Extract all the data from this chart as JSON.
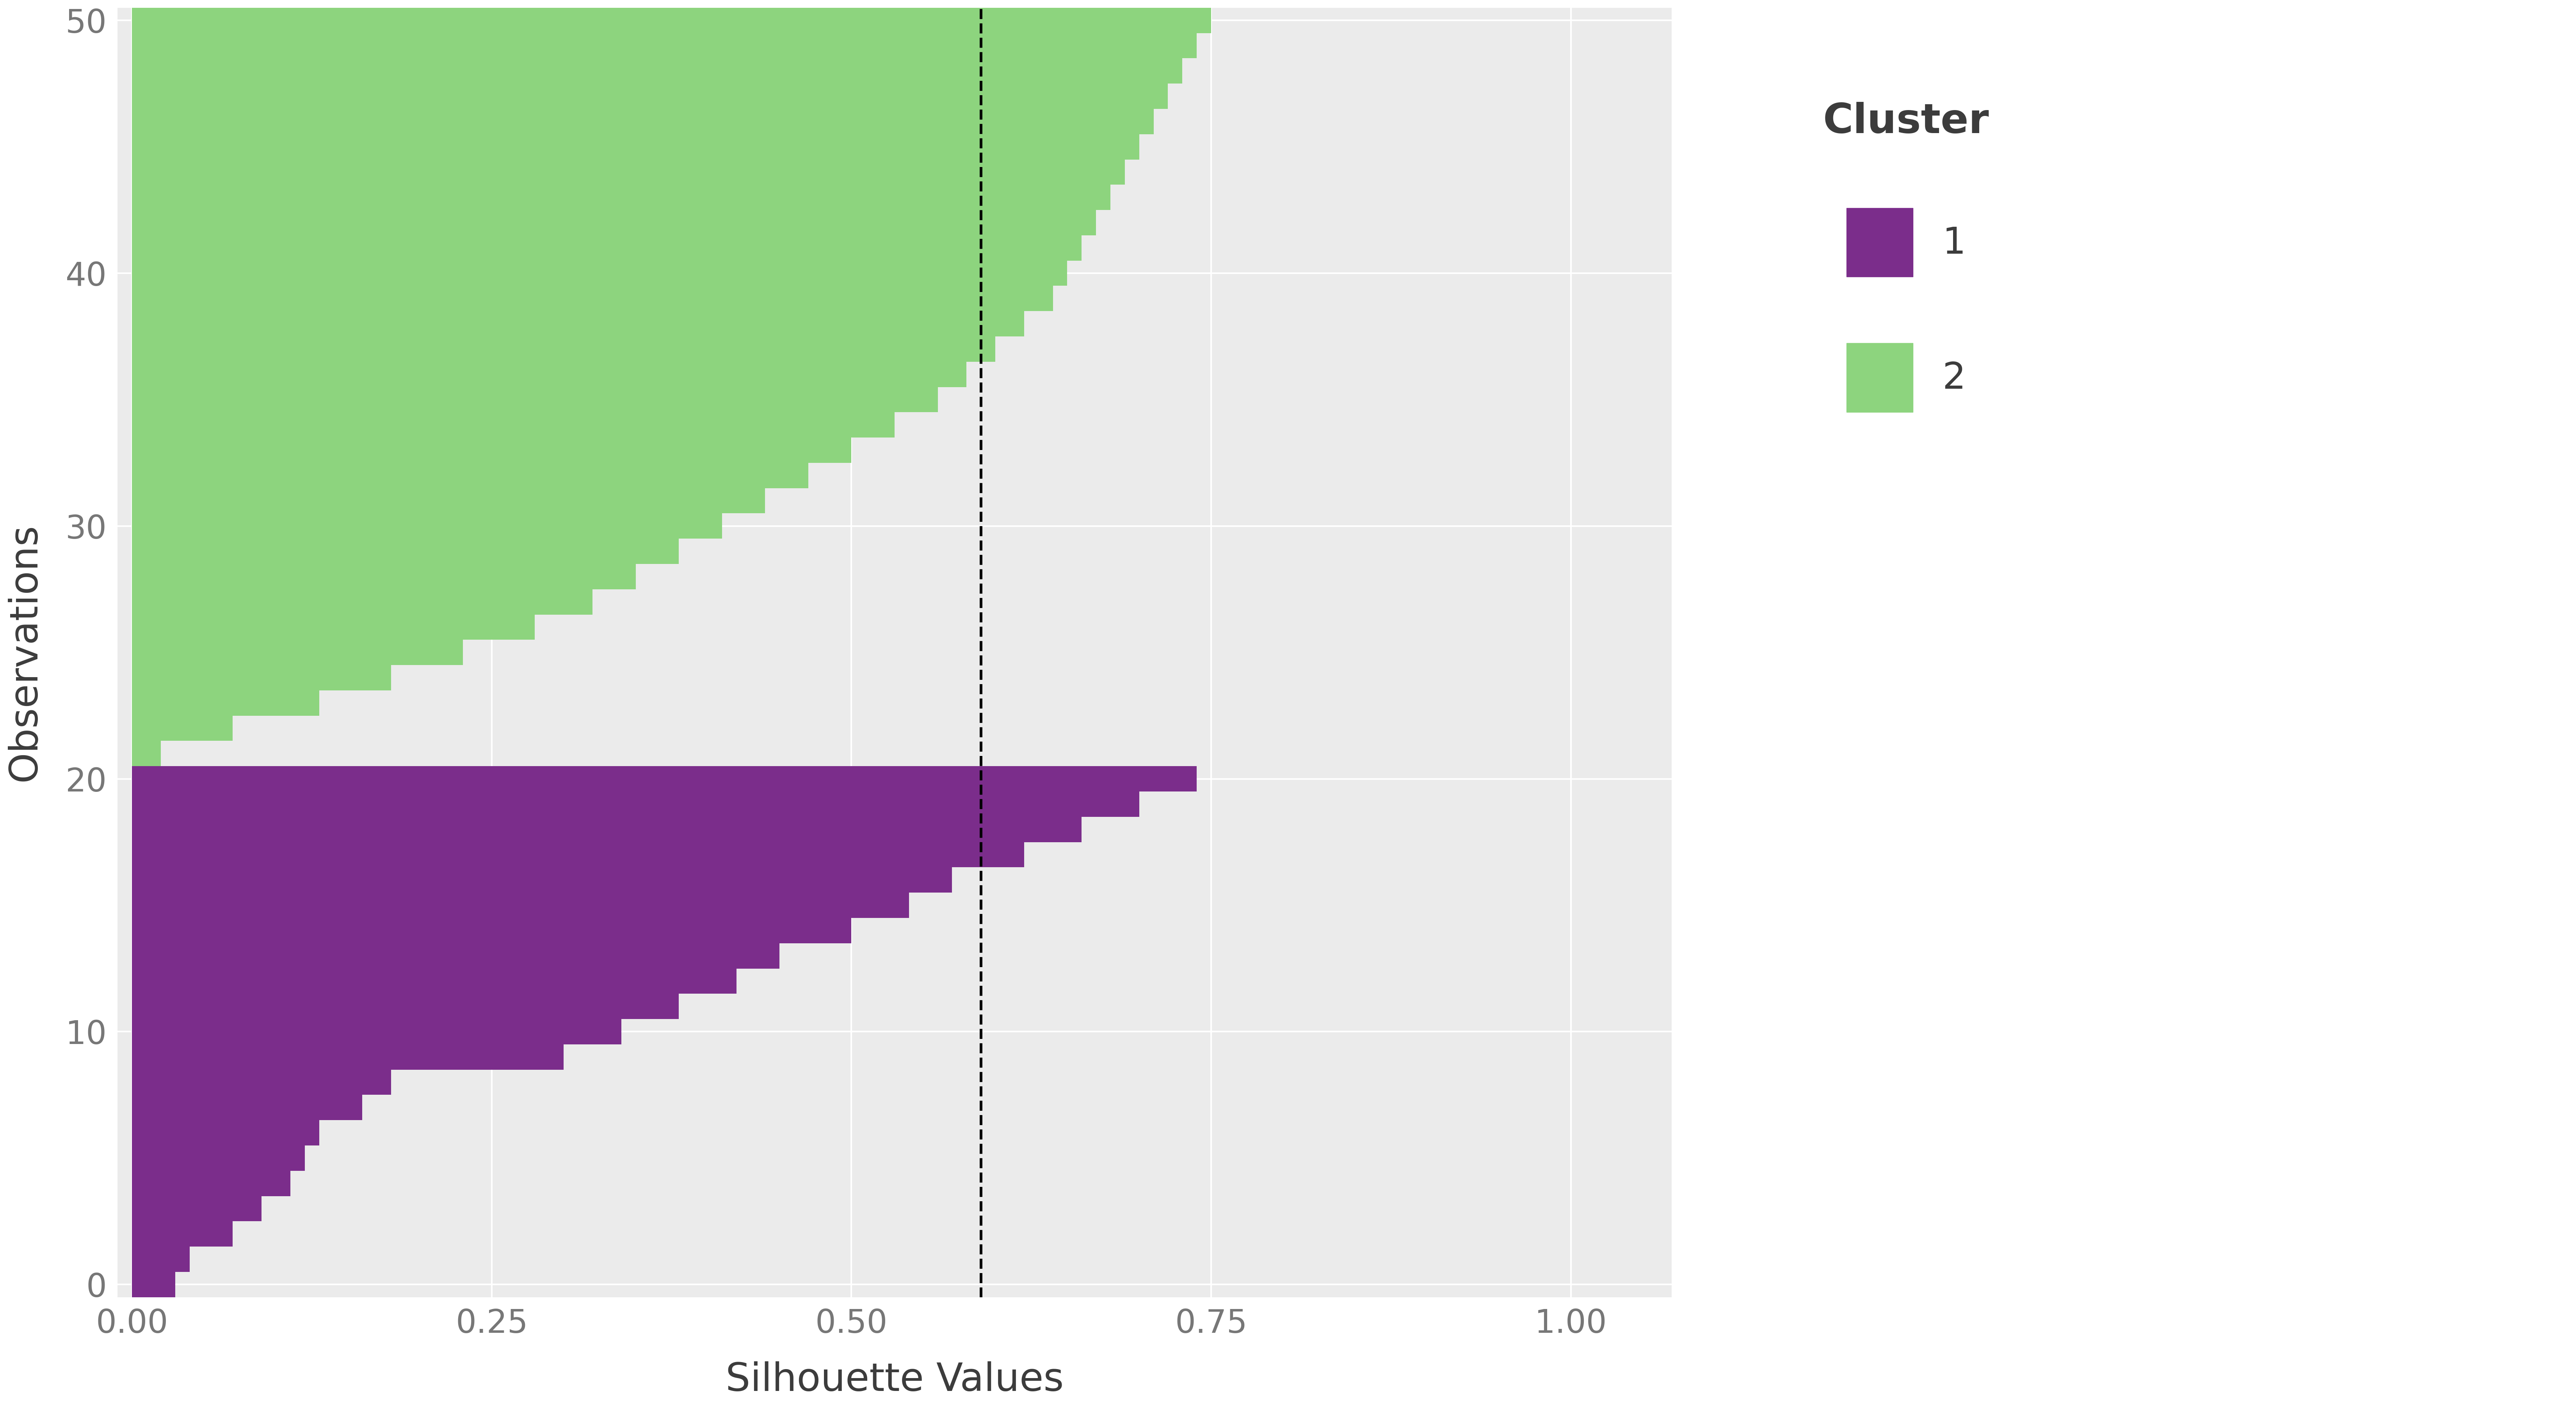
{
  "xlabel": "Silhouette Values",
  "ylabel": "Observations",
  "xlim": [
    -0.01,
    1.07
  ],
  "ylim": [
    -0.5,
    50.5
  ],
  "xticks": [
    0.0,
    0.25,
    0.5,
    0.75,
    1.0
  ],
  "yticks": [
    0,
    10,
    20,
    30,
    40,
    50
  ],
  "vline_x": 0.59,
  "cluster1_color": "#7B2D8B",
  "cluster2_color": "#8DD47E",
  "background_color": "#FFFFFF",
  "panel_background": "#EBEBEB",
  "grid_color": "#FFFFFF",
  "cluster1_values": [
    0.03,
    0.04,
    0.07,
    0.09,
    0.11,
    0.12,
    0.13,
    0.16,
    0.18,
    0.3,
    0.34,
    0.38,
    0.42,
    0.45,
    0.5,
    0.54,
    0.57,
    0.62,
    0.66,
    0.7,
    0.74
  ],
  "cluster2_values": [
    0.75,
    0.74,
    0.73,
    0.72,
    0.71,
    0.7,
    0.69,
    0.68,
    0.67,
    0.66,
    0.65,
    0.64,
    0.62,
    0.6,
    0.58,
    0.56,
    0.53,
    0.5,
    0.47,
    0.44,
    0.41,
    0.38,
    0.35,
    0.32,
    0.28,
    0.23,
    0.18,
    0.13,
    0.07,
    0.02
  ],
  "legend_title": "Cluster",
  "legend_label1": "1",
  "legend_label2": "2",
  "xlabel_fontsize": 72,
  "ylabel_fontsize": 72,
  "tick_fontsize": 60,
  "legend_title_fontsize": 76,
  "legend_fontsize": 68
}
